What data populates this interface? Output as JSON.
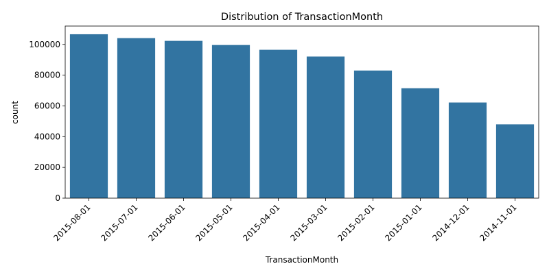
{
  "chart_data": {
    "type": "bar",
    "title": "Distribution of TransactionMonth",
    "xlabel": "TransactionMonth",
    "ylabel": "count",
    "categories": [
      "2015-08-01",
      "2015-07-01",
      "2015-06-01",
      "2015-05-01",
      "2015-04-01",
      "2015-03-01",
      "2015-02-01",
      "2015-01-01",
      "2014-12-01",
      "2014-11-01"
    ],
    "values": [
      106600,
      104100,
      102300,
      99600,
      96500,
      92100,
      83000,
      71500,
      62200,
      48000
    ],
    "ylim": [
      0,
      111930
    ],
    "yticks": [
      0,
      20000,
      40000,
      60000,
      80000,
      100000
    ],
    "ytick_labels": [
      "0",
      "20000",
      "40000",
      "60000",
      "80000",
      "100000"
    ],
    "bar_color": "#3274a1",
    "grid": false,
    "legend": "none"
  }
}
